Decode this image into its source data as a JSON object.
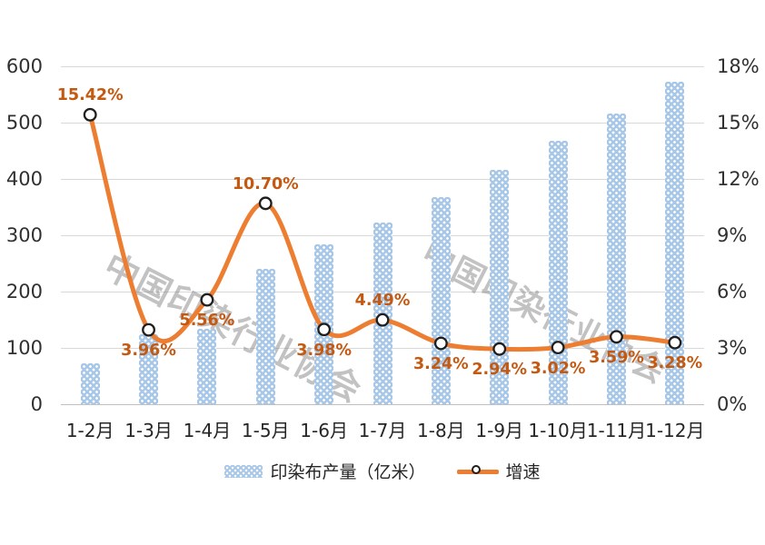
{
  "watermark": {
    "text": "中国印染行业协会"
  },
  "colors": {
    "bar_fill": "#A7C7E8",
    "bar_dots": "#FFFFFF",
    "line": "#ED7D31",
    "marker_fill": "#FFFFFF",
    "marker_stroke": "#1F1F1F",
    "data_label": "#C45911",
    "axis_text": "#303030",
    "gridline": "#D9D9D9",
    "axis_line": "#C0C0C0",
    "watermark": "#808080"
  },
  "legend": {
    "bar_label": "印染布产量（亿米）",
    "line_label": "增速"
  },
  "chart_data": {
    "type": "combo_bar_line",
    "categories": [
      "1-2月",
      "1-3月",
      "1-4月",
      "1-5月",
      "1-6月",
      "1-7月",
      "1-8月",
      "1-9月",
      "1-10月",
      "1-11月",
      "1-12月"
    ],
    "series": [
      {
        "name": "印染布产量（亿米）",
        "type": "bar",
        "axis": "left",
        "values": [
          73,
          125,
          134,
          240,
          284,
          322,
          368,
          416,
          467,
          516,
          573
        ]
      },
      {
        "name": "增速",
        "type": "line",
        "axis": "right",
        "values": [
          15.42,
          3.96,
          5.56,
          10.7,
          3.98,
          4.49,
          3.24,
          2.94,
          3.02,
          3.59,
          3.28
        ],
        "data_labels": [
          "15.42%",
          "3.96%",
          "5.56%",
          "10.70%",
          "3.98%",
          "4.49%",
          "3.24%",
          "2.94%",
          "3.02%",
          "3.59%",
          "3.28%"
        ],
        "label_placement": [
          "above",
          "below",
          "below",
          "above",
          "below",
          "above",
          "below",
          "below",
          "below",
          "below",
          "below"
        ]
      }
    ],
    "left_axis": {
      "min": 0,
      "max": 600,
      "step": 100,
      "ticks": [
        "0",
        "100",
        "200",
        "300",
        "400",
        "500",
        "600"
      ]
    },
    "right_axis": {
      "min": 0,
      "max": 18,
      "step": 3,
      "ticks": [
        "0%",
        "3%",
        "6%",
        "9%",
        "12%",
        "15%",
        "18%"
      ]
    },
    "grid": true,
    "legend_position": "bottom",
    "title": ""
  }
}
